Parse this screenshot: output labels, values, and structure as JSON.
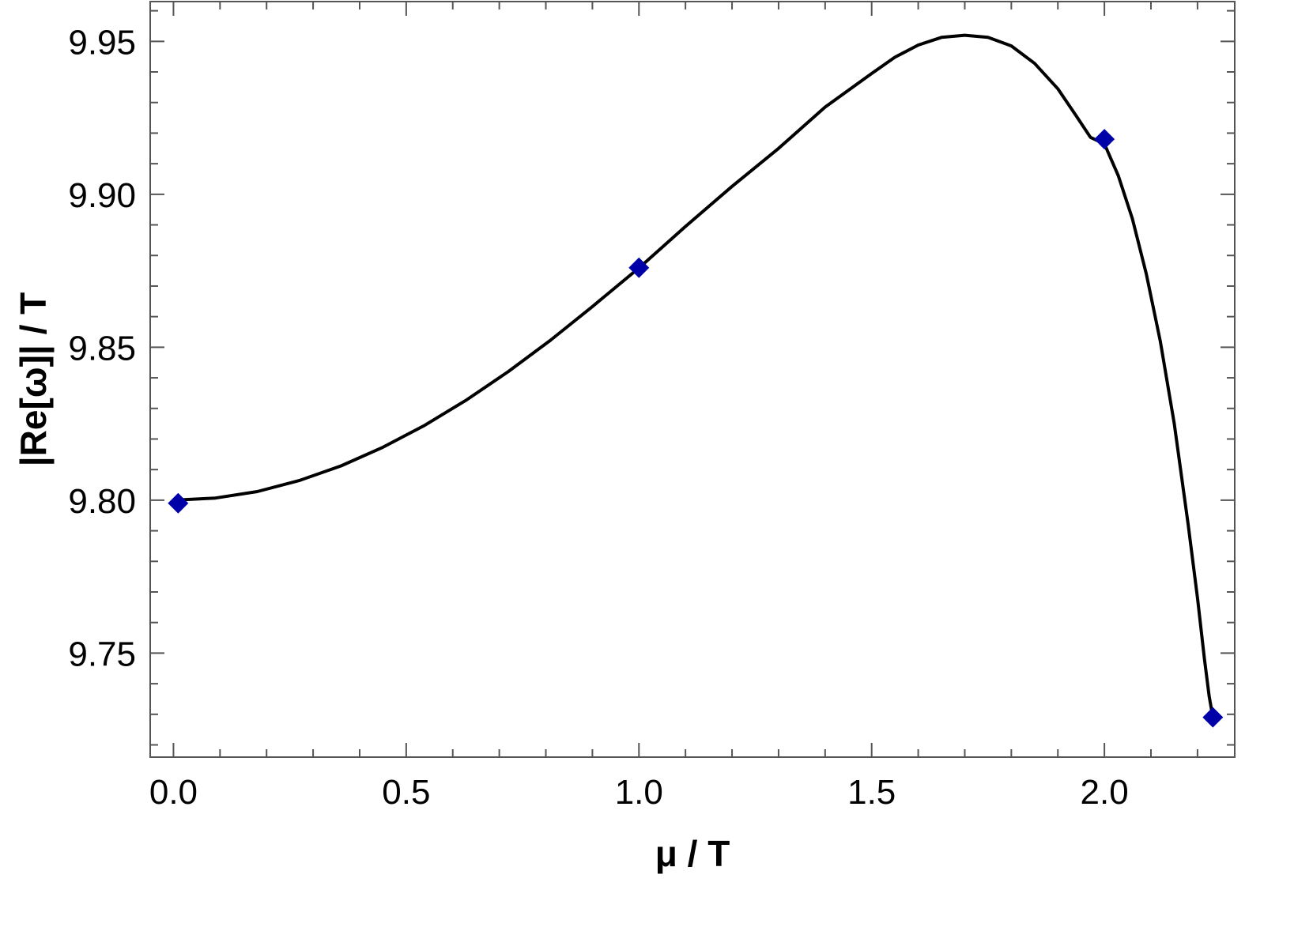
{
  "chart_data": {
    "type": "line",
    "xlabel": "μ / T",
    "ylabel": "|Re[ω]| / T",
    "xlim": [
      -0.05,
      2.28
    ],
    "ylim": [
      9.716,
      9.963
    ],
    "x_ticks": [
      {
        "value": 0.0,
        "label": "0.0"
      },
      {
        "value": 0.5,
        "label": "0.5"
      },
      {
        "value": 1.0,
        "label": "1.0"
      },
      {
        "value": 1.5,
        "label": "1.5"
      },
      {
        "value": 2.0,
        "label": "2.0"
      }
    ],
    "y_ticks": [
      {
        "value": 9.75,
        "label": "9.75"
      },
      {
        "value": 9.8,
        "label": "9.80"
      },
      {
        "value": 9.85,
        "label": "9.85"
      },
      {
        "value": 9.9,
        "label": "9.90"
      },
      {
        "value": 9.95,
        "label": "9.95"
      }
    ],
    "grid": false,
    "series": [
      {
        "kind": "line",
        "color": "#000000",
        "x": [
          0.0,
          0.09,
          0.18,
          0.27,
          0.36,
          0.45,
          0.54,
          0.63,
          0.72,
          0.81,
          0.9,
          1.0,
          1.1,
          1.2,
          1.3,
          1.4,
          1.5,
          1.55,
          1.6,
          1.65,
          1.7,
          1.75,
          1.8,
          1.85,
          1.9,
          1.94,
          1.97,
          2.0,
          2.03,
          2.06,
          2.09,
          2.12,
          2.15,
          2.18,
          2.2,
          2.215,
          2.225,
          2.233
        ],
        "y": [
          9.8,
          9.8007,
          9.8028,
          9.8064,
          9.8112,
          9.8173,
          9.8245,
          9.8328,
          9.8421,
          9.8523,
          9.8633,
          9.8759,
          9.8895,
          9.9026,
          9.915,
          9.9285,
          9.9395,
          9.9448,
          9.9488,
          9.9513,
          9.952,
          9.9513,
          9.9485,
          9.9428,
          9.9345,
          9.9255,
          9.9186,
          9.9165,
          9.906,
          9.892,
          9.874,
          9.852,
          9.825,
          9.792,
          9.768,
          9.748,
          9.736,
          9.729
        ]
      },
      {
        "kind": "markers",
        "marker": "diamond",
        "color": "#0000a8",
        "x": [
          0.01,
          1.0,
          2.0,
          2.233
        ],
        "y": [
          9.799,
          9.876,
          9.918,
          9.729
        ]
      }
    ]
  }
}
